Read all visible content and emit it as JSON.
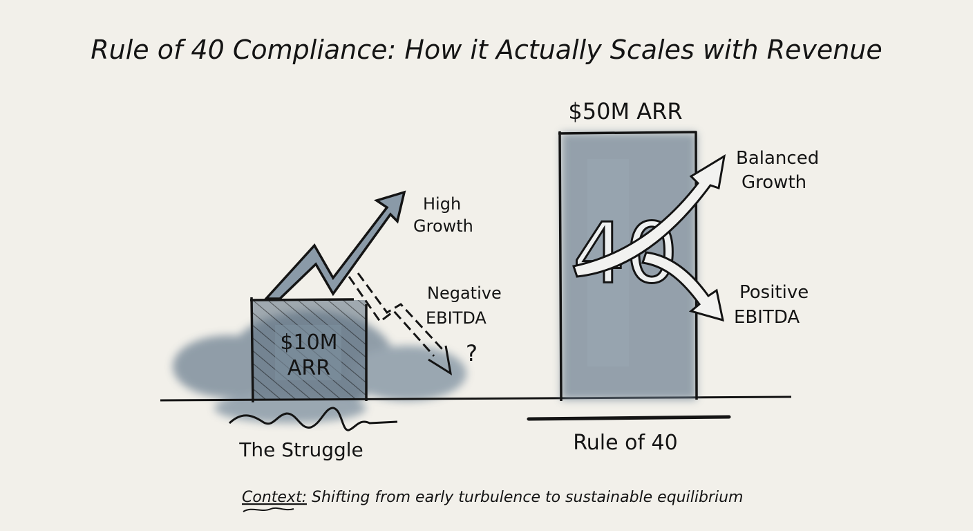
{
  "title": "Rule of 40 Compliance: How it Actually Scales with Revenue",
  "left": {
    "box_label_line1": "$10M",
    "box_label_line2": "ARR",
    "growth_label_line1": "High",
    "growth_label_line2": "Growth",
    "ebitda_label_line1": "Negative",
    "ebitda_label_line2": "EBITDA",
    "question": "?",
    "caption": "The Struggle"
  },
  "right": {
    "top_label": "$50M ARR",
    "center_number": "40",
    "growth_label_line1": "Balanced",
    "growth_label_line2": "Growth",
    "ebitda_label_line1": "Positive",
    "ebitda_label_line2": "EBITDA",
    "caption": "Rule of 40"
  },
  "footer": {
    "context_label": "Context:",
    "context_text": " Shifting from early turbulence to sustainable equilibrium"
  },
  "colors": {
    "paper": "#f2f0ea",
    "ink": "#141414",
    "watercolor": "#6f8293"
  }
}
